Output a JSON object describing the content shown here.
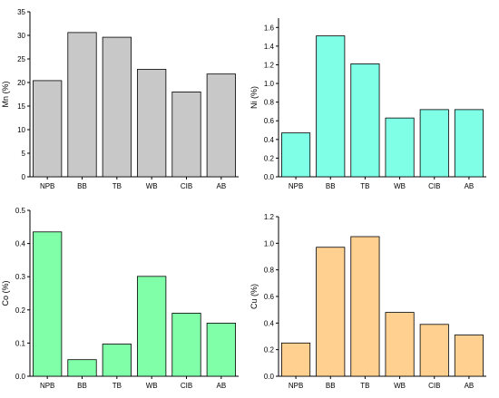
{
  "chart_data": [
    {
      "type": "bar",
      "categories": [
        "NPB",
        "BB",
        "TB",
        "WB",
        "CIB",
        "AB"
      ],
      "values": [
        20.4,
        30.6,
        29.6,
        22.8,
        18.0,
        21.8
      ],
      "ylabel": "Mn (%)",
      "ylim": [
        0,
        35
      ],
      "yticks": [
        "0",
        "5",
        "10",
        "15",
        "20",
        "25",
        "30",
        "35"
      ],
      "color": "#c8c8c8"
    },
    {
      "type": "bar",
      "categories": [
        "NPB",
        "BB",
        "TB",
        "WB",
        "CIB",
        "AB"
      ],
      "values": [
        0.47,
        1.51,
        1.21,
        0.63,
        0.72,
        0.72
      ],
      "ylabel": "Ni (%)",
      "ylim": [
        0,
        1.7
      ],
      "yticks": [
        "0.0",
        "0.2",
        "0.4",
        "0.6",
        "0.8",
        "1.0",
        "1.2",
        "1.4",
        "1.6"
      ],
      "color": "#7fffe6"
    },
    {
      "type": "bar",
      "categories": [
        "NPB",
        "BB",
        "TB",
        "WB",
        "CIB",
        "AB"
      ],
      "values": [
        0.435,
        0.05,
        0.097,
        0.301,
        0.19,
        0.16
      ],
      "ylabel": "Co (%)",
      "ylim": [
        0,
        0.5
      ],
      "yticks": [
        "0.0",
        "0.1",
        "0.2",
        "0.3",
        "0.4",
        "0.5"
      ],
      "color": "#80ffa8"
    },
    {
      "type": "bar",
      "categories": [
        "NPB",
        "BB",
        "TB",
        "WB",
        "CIB",
        "AB"
      ],
      "values": [
        0.25,
        0.97,
        1.05,
        0.48,
        0.39,
        0.31
      ],
      "ylabel": "Cu (%)",
      "ylim": [
        0,
        1.2
      ],
      "yticks": [
        "0.0",
        "0.2",
        "0.4",
        "0.6",
        "0.8",
        "1.0",
        "1.2"
      ],
      "color": "#ffd08f"
    }
  ]
}
